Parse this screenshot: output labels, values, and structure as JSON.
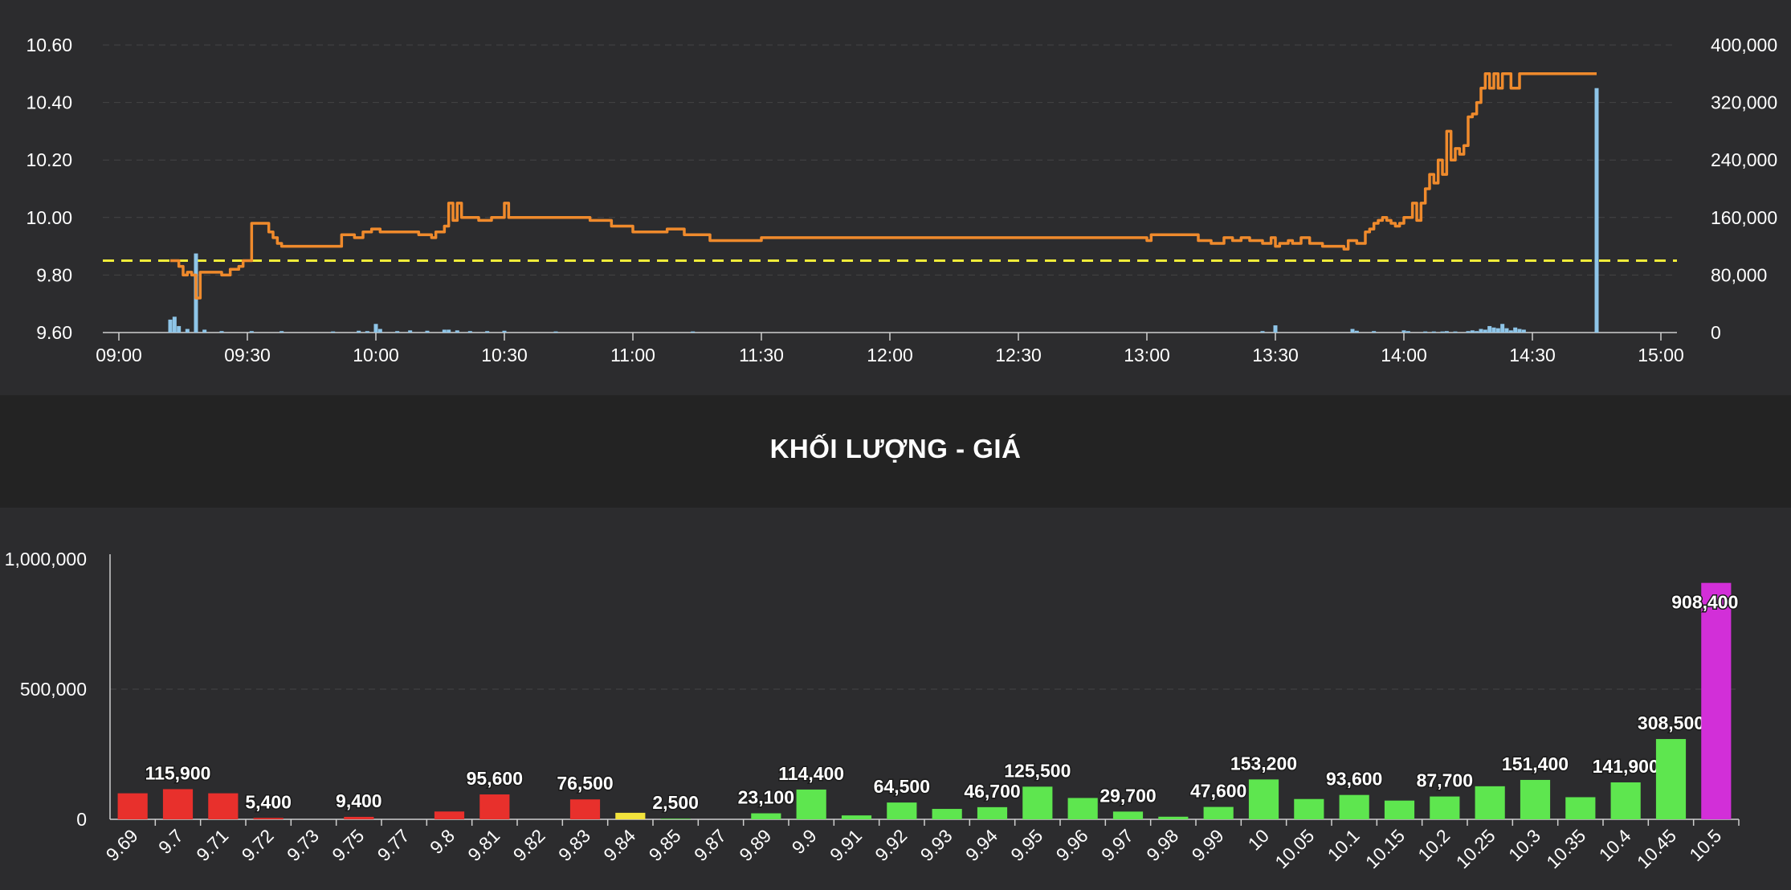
{
  "chart_data": [
    {
      "type": "line",
      "x_ticks": [
        "09:00",
        "09:30",
        "10:00",
        "10:30",
        "11:00",
        "11:30",
        "12:00",
        "12:30",
        "13:00",
        "13:30",
        "14:00",
        "14:30",
        "15:00"
      ],
      "y_ticks_left": [
        "10.60",
        "10.40",
        "10.20",
        "10.00",
        "9.80",
        "9.60"
      ],
      "y_ticks_right": [
        "400,000",
        "320,000",
        "240,000",
        "160,000",
        "80,000",
        "0"
      ],
      "ylim_left": [
        9.6,
        10.6
      ],
      "ylim_right": [
        0,
        400000
      ],
      "reference_price": 9.85,
      "grid": true,
      "series": [
        {
          "kind": "price-line",
          "points": [
            [
              "09:12",
              9.85
            ],
            [
              "09:14",
              9.83
            ],
            [
              "09:15",
              9.8
            ],
            [
              "09:16",
              9.81
            ],
            [
              "09:17",
              9.8
            ],
            [
              "09:18",
              9.72
            ],
            [
              "09:19",
              9.81
            ],
            [
              "09:22",
              9.81
            ],
            [
              "09:24",
              9.8
            ],
            [
              "09:26",
              9.82
            ],
            [
              "09:28",
              9.83
            ],
            [
              "09:29",
              9.85
            ],
            [
              "09:31",
              9.98
            ],
            [
              "09:35",
              9.95
            ],
            [
              "09:36",
              9.93
            ],
            [
              "09:37",
              9.91
            ],
            [
              "09:38",
              9.9
            ],
            [
              "09:50",
              9.9
            ],
            [
              "09:52",
              9.94
            ],
            [
              "09:55",
              9.93
            ],
            [
              "09:57",
              9.95
            ],
            [
              "09:59",
              9.96
            ],
            [
              "10:01",
              9.95
            ],
            [
              "10:08",
              9.95
            ],
            [
              "10:10",
              9.94
            ],
            [
              "10:13",
              9.93
            ],
            [
              "10:14",
              9.95
            ],
            [
              "10:16",
              9.97
            ],
            [
              "10:17",
              10.05
            ],
            [
              "10:18",
              9.99
            ],
            [
              "10:19",
              10.05
            ],
            [
              "10:20",
              10.0
            ],
            [
              "10:22",
              10.0
            ],
            [
              "10:24",
              9.99
            ],
            [
              "10:27",
              10.0
            ],
            [
              "10:29",
              10.0
            ],
            [
              "10:30",
              10.05
            ],
            [
              "10:31",
              10.0
            ],
            [
              "10:40",
              10.0
            ],
            [
              "10:50",
              9.99
            ],
            [
              "10:55",
              9.97
            ],
            [
              "11:00",
              9.95
            ],
            [
              "11:05",
              9.95
            ],
            [
              "11:08",
              9.96
            ],
            [
              "11:10",
              9.96
            ],
            [
              "11:12",
              9.94
            ],
            [
              "11:17",
              9.94
            ],
            [
              "11:18",
              9.92
            ],
            [
              "11:28",
              9.92
            ],
            [
              "11:30",
              9.93
            ],
            [
              "13:00",
              9.92
            ],
            [
              "13:01",
              9.94
            ],
            [
              "13:08",
              9.94
            ],
            [
              "13:12",
              9.92
            ],
            [
              "13:15",
              9.91
            ],
            [
              "13:18",
              9.93
            ],
            [
              "13:20",
              9.92
            ],
            [
              "13:22",
              9.93
            ],
            [
              "13:24",
              9.92
            ],
            [
              "13:27",
              9.91
            ],
            [
              "13:29",
              9.93
            ],
            [
              "13:30",
              9.9
            ],
            [
              "13:31",
              9.91
            ],
            [
              "13:33",
              9.92
            ],
            [
              "13:34",
              9.91
            ],
            [
              "13:36",
              9.93
            ],
            [
              "13:38",
              9.91
            ],
            [
              "13:41",
              9.9
            ],
            [
              "13:45",
              9.9
            ],
            [
              "13:46",
              9.89
            ],
            [
              "13:47",
              9.92
            ],
            [
              "13:49",
              9.91
            ],
            [
              "13:51",
              9.95
            ],
            [
              "13:52",
              9.96
            ],
            [
              "13:53",
              9.98
            ],
            [
              "13:54",
              9.99
            ],
            [
              "13:55",
              10.0
            ],
            [
              "13:56",
              9.99
            ],
            [
              "13:57",
              9.98
            ],
            [
              "13:58",
              9.97
            ],
            [
              "13:59",
              9.98
            ],
            [
              "14:00",
              10.0
            ],
            [
              "14:01",
              10.0
            ],
            [
              "14:02",
              10.05
            ],
            [
              "14:03",
              9.99
            ],
            [
              "14:04",
              10.05
            ],
            [
              "14:05",
              10.1
            ],
            [
              "14:06",
              10.15
            ],
            [
              "14:07",
              10.12
            ],
            [
              "14:08",
              10.2
            ],
            [
              "14:09",
              10.15
            ],
            [
              "14:10",
              10.3
            ],
            [
              "14:11",
              10.2
            ],
            [
              "14:12",
              10.24
            ],
            [
              "14:13",
              10.22
            ],
            [
              "14:14",
              10.25
            ],
            [
              "14:15",
              10.35
            ],
            [
              "14:16",
              10.36
            ],
            [
              "14:17",
              10.4
            ],
            [
              "14:18",
              10.45
            ],
            [
              "14:19",
              10.5
            ],
            [
              "14:20",
              10.45
            ],
            [
              "14:21",
              10.5
            ],
            [
              "14:22",
              10.45
            ],
            [
              "14:23",
              10.5
            ],
            [
              "14:25",
              10.45
            ],
            [
              "14:27",
              10.5
            ],
            [
              "14:45",
              10.5
            ]
          ]
        },
        {
          "kind": "volume-bars",
          "points": [
            [
              "09:12",
              18000
            ],
            [
              "09:13",
              22000
            ],
            [
              "09:14",
              9000
            ],
            [
              "09:16",
              5000
            ],
            [
              "09:18",
              110000
            ],
            [
              "09:20",
              4000
            ],
            [
              "09:24",
              2000
            ],
            [
              "09:31",
              2000
            ],
            [
              "09:38",
              2000
            ],
            [
              "09:50",
              1500
            ],
            [
              "09:56",
              2500
            ],
            [
              "09:58",
              2000
            ],
            [
              "10:00",
              12000
            ],
            [
              "10:01",
              5000
            ],
            [
              "10:05",
              2000
            ],
            [
              "10:08",
              3000
            ],
            [
              "10:12",
              2500
            ],
            [
              "10:16",
              4000
            ],
            [
              "10:17",
              4000
            ],
            [
              "10:19",
              3000
            ],
            [
              "10:22",
              2000
            ],
            [
              "10:26",
              2000
            ],
            [
              "10:30",
              2500
            ],
            [
              "10:42",
              1500
            ],
            [
              "11:14",
              1500
            ],
            [
              "13:27",
              2000
            ],
            [
              "13:30",
              10000
            ],
            [
              "13:48",
              5000
            ],
            [
              "13:49",
              2500
            ],
            [
              "13:53",
              2000
            ],
            [
              "14:00",
              3000
            ],
            [
              "14:01",
              2000
            ],
            [
              "14:05",
              1500
            ],
            [
              "14:07",
              1500
            ],
            [
              "14:09",
              1500
            ],
            [
              "14:10",
              2000
            ],
            [
              "14:12",
              1500
            ],
            [
              "14:15",
              2000
            ],
            [
              "14:16",
              3000
            ],
            [
              "14:17",
              2000
            ],
            [
              "14:18",
              5000
            ],
            [
              "14:19",
              4000
            ],
            [
              "14:20",
              9000
            ],
            [
              "14:21",
              7000
            ],
            [
              "14:22",
              6000
            ],
            [
              "14:23",
              12000
            ],
            [
              "14:24",
              6000
            ],
            [
              "14:25",
              3000
            ],
            [
              "14:26",
              7000
            ],
            [
              "14:27",
              5000
            ],
            [
              "14:28",
              4000
            ],
            [
              "14:45",
              340000
            ]
          ]
        }
      ]
    },
    {
      "type": "bar",
      "title": "KHỐI LƯỢNG - GIÁ",
      "categories": [
        "9.69",
        "9.7",
        "9.71",
        "9.72",
        "9.73",
        "9.75",
        "9.77",
        "9.8",
        "9.81",
        "9.82",
        "9.83",
        "9.84",
        "9.85",
        "9.87",
        "9.89",
        "9.9",
        "9.91",
        "9.92",
        "9.93",
        "9.94",
        "9.95",
        "9.96",
        "9.97",
        "9.98",
        "9.99",
        "10",
        "10.05",
        "10.1",
        "10.15",
        "10.2",
        "10.25",
        "10.3",
        "10.35",
        "10.4",
        "10.45",
        "10.5"
      ],
      "values": [
        100000,
        115900,
        100000,
        5400,
        0,
        9400,
        0,
        30000,
        95600,
        0,
        76500,
        25000,
        2500,
        0,
        23100,
        114400,
        15000,
        64500,
        40000,
        46700,
        125500,
        82000,
        29700,
        10000,
        47600,
        153200,
        78000,
        93600,
        72000,
        87700,
        127000,
        151400,
        85000,
        141900,
        308500,
        908400
      ],
      "labels": [
        "",
        "115,900",
        "",
        "5,400",
        "",
        "9,400",
        "",
        "",
        "95,600",
        "",
        "76,500",
        "",
        "2,500",
        "",
        "23,100",
        "114,400",
        "",
        "64,500",
        "",
        "46,700",
        "125,500",
        "",
        "29,700",
        "",
        "47,600",
        "153,200",
        "",
        "93,600",
        "",
        "87,700",
        "",
        "151,400",
        "",
        "141,900",
        "308,500",
        "908,400"
      ],
      "colors": [
        "#e8302c",
        "#e8302c",
        "#e8302c",
        "#e8302c",
        "#e8302c",
        "#e8302c",
        "#e8302c",
        "#e8302c",
        "#e8302c",
        "#e8302c",
        "#e8302c",
        "#f2e33c",
        "#5ee64f",
        "#5ee64f",
        "#5ee64f",
        "#5ee64f",
        "#5ee64f",
        "#5ee64f",
        "#5ee64f",
        "#5ee64f",
        "#5ee64f",
        "#5ee64f",
        "#5ee64f",
        "#5ee64f",
        "#5ee64f",
        "#5ee64f",
        "#5ee64f",
        "#5ee64f",
        "#5ee64f",
        "#5ee64f",
        "#5ee64f",
        "#5ee64f",
        "#5ee64f",
        "#5ee64f",
        "#5ee64f",
        "#d22fd8"
      ],
      "y_ticks": [
        "1,000,000",
        "500,000",
        "0"
      ],
      "ylim": [
        0,
        1000000
      ]
    }
  ],
  "colors": {
    "price_line": "#ef8a2c",
    "volume_bar": "#8ec5e8",
    "reference_line": "#f0ec3a",
    "grid": "#444446",
    "axis": "#cfcfcf"
  }
}
